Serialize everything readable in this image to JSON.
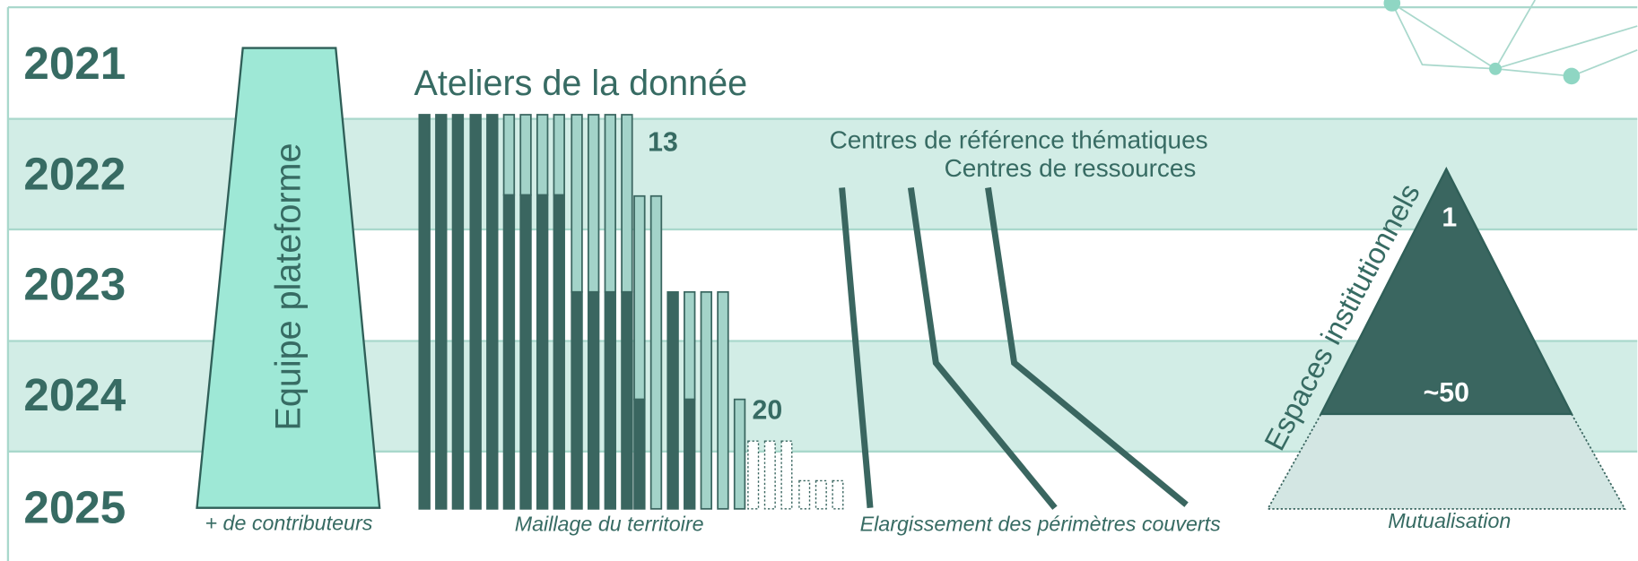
{
  "years": [
    "2021",
    "2022",
    "2023",
    "2024",
    "2025"
  ],
  "platform": {
    "label": "Equipe plateforme",
    "caption": "+ de contributeurs"
  },
  "workshops": {
    "title": "Ateliers de la donnée",
    "count_2022": 13,
    "count_2024": 20,
    "caption": "Maillage du territoire"
  },
  "centres": {
    "thematic": "Centres de référence thématiques",
    "resources": "Centres de ressources",
    "caption": "Elargissement des périmètres couverts"
  },
  "institutions": {
    "label": "Espaces institutionnels",
    "top": 1,
    "base": "~50",
    "caption": "Mutualisation"
  }
}
